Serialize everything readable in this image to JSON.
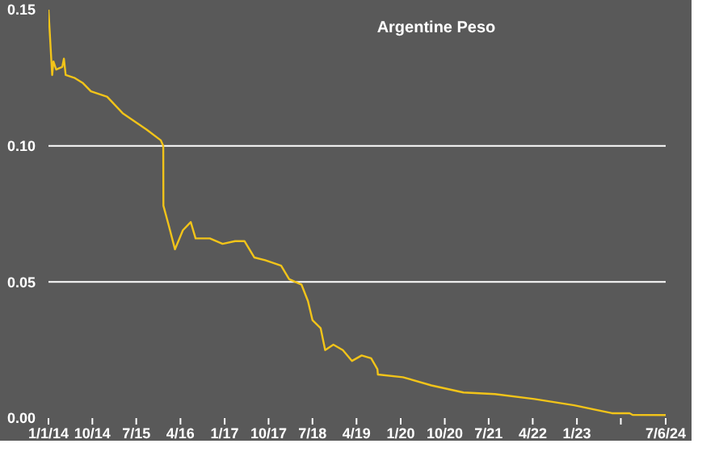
{
  "chart_data": {
    "type": "line",
    "title": "Argentine Peso",
    "x": [
      "2014-01-01",
      "2014-01-24",
      "2014-02-01",
      "2014-02-18",
      "2014-03-28",
      "2014-04-07",
      "2014-04-18",
      "2014-06-10",
      "2014-08-04",
      "2014-09-22",
      "2015-01-01",
      "2015-04-07",
      "2015-09-03",
      "2015-12-01",
      "2015-12-16",
      "2015-12-17",
      "2016-01-18",
      "2016-02-27",
      "2016-04-16",
      "2016-06-04",
      "2016-07-04",
      "2016-10-01",
      "2016-12-19",
      "2017-03-07",
      "2017-05-04",
      "2017-07-04",
      "2017-09-10",
      "2017-12-18",
      "2018-02-06",
      "2018-04-24",
      "2018-06-03",
      "2018-07-01",
      "2018-08-21",
      "2018-09-18",
      "2018-11-08",
      "2019-01-06",
      "2019-03-04",
      "2019-05-03",
      "2019-07-01",
      "2019-08-09",
      "2019-08-12",
      "2020-01-15",
      "2020-07-10",
      "2021-01-25",
      "2021-08-09",
      "2022-04-12",
      "2022-12-15",
      "2023-08-07",
      "2023-11-25",
      "2023-12-13",
      "2024-07-06"
    ],
    "series": [
      {
        "color": "#f2c419",
        "values": [
          0.15,
          0.126,
          0.131,
          0.128,
          0.129,
          0.132,
          0.126,
          0.125,
          0.123,
          0.12,
          0.118,
          0.112,
          0.106,
          0.102,
          0.1,
          0.078,
          0.071,
          0.062,
          0.069,
          0.072,
          0.066,
          0.066,
          0.064,
          0.065,
          0.065,
          0.059,
          0.058,
          0.056,
          0.051,
          0.049,
          0.043,
          0.036,
          0.033,
          0.025,
          0.027,
          0.025,
          0.021,
          0.023,
          0.022,
          0.018,
          0.016,
          0.015,
          0.012,
          0.0094,
          0.0088,
          0.007,
          0.0047,
          0.0018,
          0.0018,
          0.0012,
          0.0011
        ]
      }
    ],
    "xlim": [
      "2014-01-01",
      "2024-07-06"
    ],
    "xticks": [
      {
        "value": "2014-01-01",
        "label": "1/1/14"
      },
      {
        "value": "2014-10-01",
        "label": "10/14"
      },
      {
        "value": "2015-07-01",
        "label": "7/15"
      },
      {
        "value": "2016-04-01",
        "label": "4/16"
      },
      {
        "value": "2017-01-01",
        "label": "1/17"
      },
      {
        "value": "2017-10-01",
        "label": "10/17"
      },
      {
        "value": "2018-07-01",
        "label": "7/18"
      },
      {
        "value": "2019-04-01",
        "label": "4/19"
      },
      {
        "value": "2020-01-01",
        "label": "1/20"
      },
      {
        "value": "2020-10-01",
        "label": "10/20"
      },
      {
        "value": "2021-07-01",
        "label": "7/21"
      },
      {
        "value": "2022-04-01",
        "label": "4/22"
      },
      {
        "value": "2023-01-01",
        "label": "1/23"
      },
      {
        "value": "2023-10-01",
        "label": null
      },
      {
        "value": "2024-07-06",
        "label": "7/6/24"
      }
    ],
    "ylim": [
      0,
      0.15
    ],
    "yticks": [
      {
        "value": 0,
        "label": "0.00"
      },
      {
        "value": 0.05,
        "label": "0.05"
      },
      {
        "value": 0.1,
        "label": "0.10"
      },
      {
        "value": 0.15,
        "label": "0.15"
      }
    ],
    "grid": "y",
    "marker": "none",
    "line_style": "solid"
  }
}
